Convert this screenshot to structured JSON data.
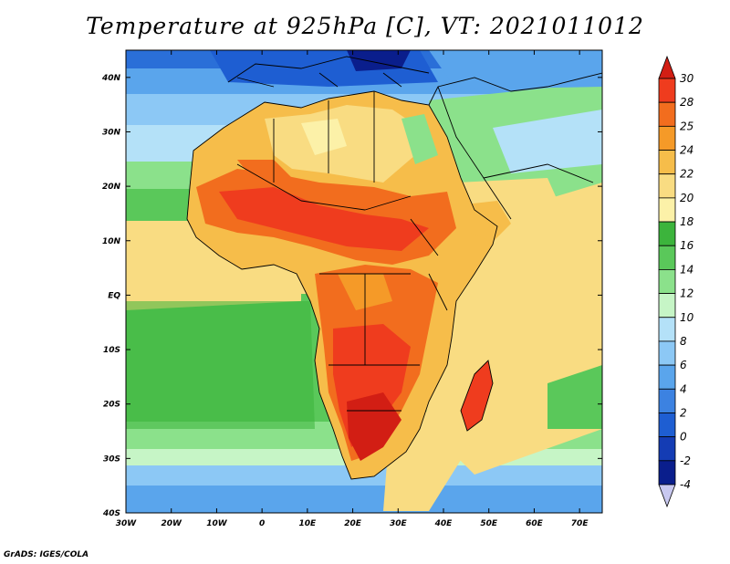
{
  "title": "Temperature at 925hPa [C], VT: 2021011012",
  "footer": "GrADS: IGES/COLA",
  "map": {
    "lon_labels": [
      "30W",
      "20W",
      "10W",
      "0",
      "10E",
      "20E",
      "30E",
      "40E",
      "50E",
      "60E",
      "70E"
    ],
    "lat_labels": [
      "40N",
      "30N",
      "20N",
      "10N",
      "EQ",
      "10S",
      "20S",
      "30S",
      "40S"
    ],
    "lon_range": [
      -30,
      75
    ],
    "lat_range": [
      -40,
      45
    ]
  },
  "colorbar": {
    "labels": [
      "30",
      "28",
      "25",
      "24",
      "22",
      "20",
      "18",
      "16",
      "14",
      "12",
      "10",
      "8",
      "6",
      "4",
      "2",
      "0",
      "-2",
      "-4"
    ],
    "colors": [
      "#d21e14",
      "#ef3c1e",
      "#f26d1e",
      "#f59a28",
      "#f6bd4a",
      "#f9dc82",
      "#fcf1a8",
      "#3cb43c",
      "#5ac85a",
      "#8be18b",
      "#c6f5c6",
      "#b4e1f8",
      "#8cc8f5",
      "#5aa5ec",
      "#3c82e1",
      "#1e5ed2",
      "#143cb4",
      "#0a1e8c",
      "#c8c8f0"
    ]
  }
}
